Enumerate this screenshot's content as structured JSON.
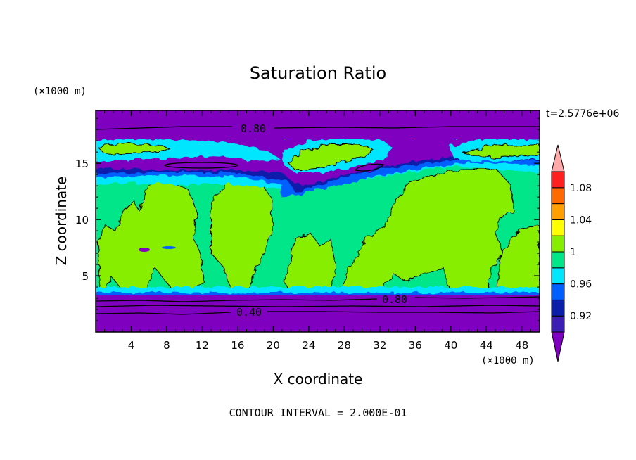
{
  "chart_data": {
    "type": "heatmap",
    "title": "Saturation Ratio",
    "xlabel": "X coordinate",
    "ylabel": "Z coordinate",
    "x_unit": "(×1000 m)",
    "y_unit": "(×1000 m)",
    "xlim": [
      0,
      50
    ],
    "ylim": [
      0,
      19.7
    ],
    "x_ticks": [
      4,
      8,
      12,
      16,
      20,
      24,
      28,
      32,
      36,
      40,
      44,
      48
    ],
    "x_tick_labels": [
      "4",
      "8",
      "12",
      "16",
      "20",
      "24",
      "28",
      "32",
      "36",
      "40",
      "44",
      "48"
    ],
    "y_ticks": [
      5,
      10,
      15
    ],
    "y_tick_labels": [
      "5",
      "10",
      "15"
    ],
    "time_label": "t=2.5776e+06",
    "contour_interval_text": "CONTOUR INTERVAL = 2.000E-01",
    "contour_labels": [
      {
        "text": "0.80",
        "x": 17.5,
        "z": 18.0
      },
      {
        "text": "0.80",
        "x": 33.0,
        "z": 3.0
      },
      {
        "text": "0.40",
        "x": 17.0,
        "z": 1.8
      }
    ],
    "colorbar": {
      "levels": [
        0.9,
        0.92,
        0.94,
        0.96,
        0.98,
        1.0,
        1.02,
        1.04,
        1.06,
        1.08,
        1.1
      ],
      "labels": [
        "0.92",
        "0.96",
        "1",
        "1.04",
        "1.08"
      ],
      "colors": [
        "#8000c0",
        "#3c1eb4",
        "#0a1eaa",
        "#0060ff",
        "#00e6ff",
        "#00e688",
        "#88ee00",
        "#ffff00",
        "#ffa000",
        "#ff6a00",
        "#ff2020",
        "#ffaaaa"
      ]
    },
    "regions": [
      {
        "level": "below 0.9",
        "z_range": [
          0,
          3.3
        ]
      },
      {
        "level": "0.98-1.0",
        "z_range": [
          3.5,
          15.5
        ]
      },
      {
        "level": "1.0-1.02",
        "description_x_ranges": [
          [
            0,
            12
          ],
          [
            13,
            20
          ],
          [
            22,
            27
          ],
          [
            33,
            41
          ],
          [
            42,
            50
          ]
        ]
      },
      {
        "level": "below 0.9",
        "z_range": [
          17,
          19.7
        ]
      }
    ]
  }
}
